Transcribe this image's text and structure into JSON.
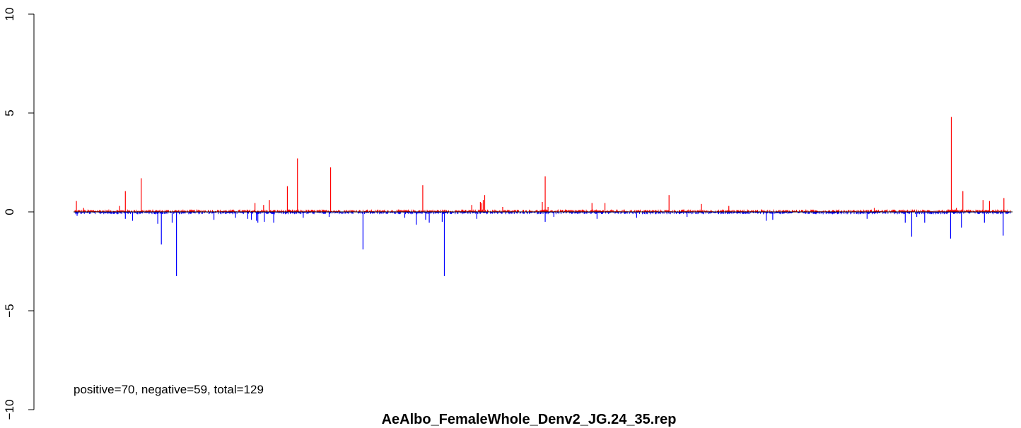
{
  "chart_data": {
    "type": "bar",
    "title": "AeAlbo_FemaleWhole_Denv2_JG.24_35.rep",
    "xlabel": "",
    "ylabel": "",
    "ylim": [
      -10,
      10
    ],
    "yticks": [
      {
        "value": 10,
        "label": "10"
      },
      {
        "value": 5,
        "label": "5"
      },
      {
        "value": 0,
        "label": "0"
      },
      {
        "value": -5,
        "label": "−5"
      },
      {
        "value": -10,
        "label": "−10"
      }
    ],
    "x_axis_visible": false,
    "grid": false,
    "legend": "none",
    "annotation": "positive=70, negative=59, total=129",
    "colors": {
      "positive": "#ff0000",
      "negative": "#0000ff",
      "baseline": "#000000"
    },
    "n_positions": 1300,
    "positive_series": {
      "x": [
        2,
        12,
        62,
        70,
        92,
        250,
        262,
        270,
        295,
        309,
        355,
        483,
        551,
        563,
        565,
        567,
        569,
        594,
        649,
        653,
        657,
        718,
        736,
        825,
        870,
        908,
        1110,
        1217,
        1224,
        1233,
        1261,
        1270,
        1290
      ],
      "values": [
        0.55,
        0.2,
        0.3,
        1.05,
        1.7,
        0.45,
        0.35,
        0.6,
        1.3,
        2.7,
        2.25,
        1.35,
        0.35,
        0.5,
        0.45,
        0.6,
        0.85,
        0.25,
        0.5,
        1.8,
        0.25,
        0.45,
        0.45,
        0.85,
        0.4,
        0.3,
        0.2,
        4.8,
        0.2,
        1.05,
        0.6,
        0.55,
        0.7
      ]
    },
    "negative_series": {
      "x": [
        3,
        70,
        80,
        115,
        120,
        135,
        141,
        193,
        223,
        240,
        245,
        252,
        254,
        263,
        276,
        317,
        353,
        400,
        458,
        474,
        487,
        492,
        510,
        513,
        558,
        653,
        665,
        725,
        780,
        850,
        960,
        969,
        1100,
        1153,
        1162,
        1169,
        1180,
        1216,
        1231,
        1263,
        1289
      ],
      "values": [
        -0.2,
        -0.35,
        -0.45,
        -0.6,
        -1.65,
        -0.55,
        -3.25,
        -0.4,
        -0.3,
        -0.35,
        -0.4,
        -0.45,
        -0.55,
        -0.5,
        -0.55,
        -0.3,
        -0.25,
        -1.9,
        -0.3,
        -0.65,
        -0.4,
        -0.55,
        -0.5,
        -3.25,
        -0.35,
        -0.5,
        -0.25,
        -0.35,
        -0.3,
        -0.25,
        -0.45,
        -0.4,
        -0.35,
        -0.55,
        -1.25,
        -0.25,
        -0.55,
        -1.35,
        -0.8,
        -0.55,
        -1.2
      ]
    }
  }
}
